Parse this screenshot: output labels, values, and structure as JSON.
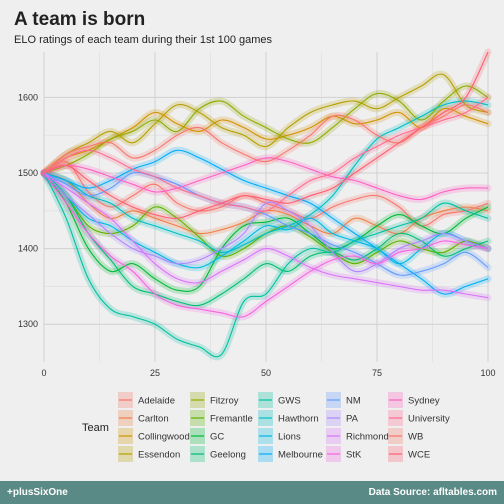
{
  "header": {
    "title": "A team is born",
    "subtitle": "ELO ratings of each team during their 1st 100 games"
  },
  "footer": {
    "left": "+plusSixOne",
    "right": "Data Source: afltables.com"
  },
  "legend": {
    "title": "Team"
  },
  "chart_data": {
    "type": "line",
    "title": "A team is born",
    "subtitle": "ELO ratings of each team during their 1st 100 games",
    "xlabel": "",
    "ylabel": "",
    "xlim": [
      0,
      100
    ],
    "ylim": [
      1250,
      1660
    ],
    "x_ticks": [
      0,
      25,
      50,
      75,
      100
    ],
    "y_ticks": [
      1300,
      1400,
      1500,
      1600
    ],
    "grid": true,
    "legend_position": "bottom",
    "x": [
      0,
      5,
      10,
      15,
      20,
      25,
      30,
      35,
      40,
      45,
      50,
      55,
      60,
      65,
      70,
      75,
      80,
      85,
      90,
      95,
      100
    ],
    "series": [
      {
        "name": "Adelaide",
        "color": "#f8766d",
        "values": [
          1500,
          1515,
          1475,
          1455,
          1470,
          1485,
          1460,
          1450,
          1455,
          1470,
          1460,
          1450,
          1440,
          1455,
          1465,
          1470,
          1455,
          1430,
          1445,
          1450,
          1460
        ]
      },
      {
        "name": "Carlton",
        "color": "#ef7f49",
        "values": [
          1500,
          1490,
          1460,
          1440,
          1450,
          1440,
          1430,
          1420,
          1425,
          1435,
          1450,
          1445,
          1430,
          1420,
          1440,
          1430,
          1420,
          1440,
          1450,
          1455,
          1450
        ]
      },
      {
        "name": "Collingwood",
        "color": "#d39200",
        "values": [
          1500,
          1520,
          1530,
          1545,
          1560,
          1580,
          1565,
          1555,
          1570,
          1560,
          1545,
          1550,
          1560,
          1575,
          1565,
          1570,
          1580,
          1560,
          1585,
          1575,
          1565
        ]
      },
      {
        "name": "Essendon",
        "color": "#b79f00",
        "values": [
          1500,
          1525,
          1540,
          1555,
          1540,
          1565,
          1590,
          1580,
          1560,
          1550,
          1535,
          1560,
          1580,
          1590,
          1595,
          1585,
          1600,
          1615,
          1630,
          1590,
          1580
        ]
      },
      {
        "name": "Fitzroy",
        "color": "#93aa00",
        "values": [
          1500,
          1510,
          1525,
          1545,
          1555,
          1570,
          1555,
          1585,
          1595,
          1575,
          1560,
          1545,
          1540,
          1560,
          1585,
          1605,
          1595,
          1570,
          1595,
          1615,
          1600
        ]
      },
      {
        "name": "Fremantle",
        "color": "#5eb300",
        "values": [
          1500,
          1470,
          1430,
          1420,
          1430,
          1455,
          1440,
          1415,
          1390,
          1400,
          1420,
          1430,
          1415,
          1395,
          1380,
          1395,
          1410,
          1400,
          1395,
          1410,
          1400
        ]
      },
      {
        "name": "GC",
        "color": "#00ba38",
        "values": [
          1500,
          1460,
          1400,
          1370,
          1380,
          1360,
          1345,
          1350,
          1400,
          1430,
          1435,
          1440,
          1420,
          1400,
          1410,
          1430,
          1445,
          1430,
          1420,
          1440,
          1455
        ]
      },
      {
        "name": "Geelong",
        "color": "#00bf74",
        "values": [
          1500,
          1470,
          1420,
          1385,
          1350,
          1340,
          1330,
          1325,
          1340,
          1360,
          1380,
          1370,
          1390,
          1395,
          1385,
          1400,
          1420,
          1410,
          1390,
          1400,
          1410
        ]
      },
      {
        "name": "GWS",
        "color": "#00c19f",
        "values": [
          1500,
          1440,
          1360,
          1320,
          1310,
          1300,
          1280,
          1270,
          1260,
          1330,
          1340,
          1380,
          1400,
          1395,
          1410,
          1420,
          1430,
          1440,
          1460,
          1450,
          1440
        ]
      },
      {
        "name": "Hawthorn",
        "color": "#00bfc4",
        "values": [
          1500,
          1490,
          1470,
          1460,
          1440,
          1430,
          1420,
          1410,
          1395,
          1405,
          1420,
          1430,
          1445,
          1470,
          1510,
          1545,
          1560,
          1575,
          1590,
          1595,
          1590
        ]
      },
      {
        "name": "Lions",
        "color": "#00b9e3",
        "values": [
          1500,
          1470,
          1440,
          1430,
          1410,
          1395,
          1380,
          1375,
          1390,
          1410,
          1430,
          1425,
          1440,
          1420,
          1410,
          1400,
          1380,
          1400,
          1420,
          1410,
          1400
        ]
      },
      {
        "name": "Melbourne",
        "color": "#00adfa",
        "values": [
          1500,
          1490,
          1480,
          1490,
          1505,
          1515,
          1530,
          1520,
          1505,
          1490,
          1480,
          1470,
          1460,
          1440,
          1420,
          1400,
          1380,
          1360,
          1340,
          1350,
          1360
        ]
      },
      {
        "name": "NM",
        "color": "#619cff",
        "values": [
          1500,
          1485,
          1470,
          1480,
          1500,
          1495,
          1485,
          1470,
          1460,
          1455,
          1445,
          1430,
          1420,
          1405,
          1395,
          1380,
          1365,
          1370,
          1380,
          1395,
          1375
        ]
      },
      {
        "name": "PA",
        "color": "#ae87ff",
        "values": [
          1500,
          1470,
          1445,
          1420,
          1400,
          1390,
          1380,
          1385,
          1400,
          1420,
          1460,
          1450,
          1430,
          1395,
          1370,
          1380,
          1400,
          1410,
          1420,
          1410,
          1400
        ]
      },
      {
        "name": "Richmond",
        "color": "#db72fb",
        "values": [
          1500,
          1480,
          1460,
          1440,
          1410,
          1380,
          1360,
          1355,
          1370,
          1385,
          1400,
          1390,
          1375,
          1365,
          1360,
          1355,
          1350,
          1345,
          1345,
          1340,
          1335
        ]
      },
      {
        "name": "StK",
        "color": "#f564e3",
        "values": [
          1500,
          1460,
          1420,
          1390,
          1370,
          1340,
          1325,
          1320,
          1315,
          1310,
          1330,
          1350,
          1370,
          1385,
          1390,
          1380,
          1395,
          1400,
          1410,
          1405,
          1400
        ]
      },
      {
        "name": "Sydney",
        "color": "#ff61c3",
        "values": [
          1500,
          1510,
          1505,
          1495,
          1485,
          1475,
          1480,
          1490,
          1500,
          1510,
          1520,
          1515,
          1505,
          1495,
          1490,
          1480,
          1470,
          1465,
          1475,
          1480,
          1480
        ]
      },
      {
        "name": "University",
        "color": "#ff6c91",
        "values": [
          1500,
          1520,
          1530,
          1520,
          1505,
          1495,
          1480,
          1470,
          1460,
          1455,
          1450,
          1470,
          1490,
          1500,
          1520,
          1535,
          1550,
          1560,
          1570,
          1580,
          1600
        ]
      },
      {
        "name": "WB",
        "color": "#f8766d",
        "values": [
          1500,
          1525,
          1535,
          1540,
          1520,
          1530,
          1550,
          1560,
          1540,
          1525,
          1515,
          1530,
          1550,
          1575,
          1570,
          1550,
          1540,
          1560,
          1575,
          1590,
          1580
        ]
      },
      {
        "name": "WCE",
        "color": "#ff5f6f",
        "values": [
          1500,
          1510,
          1490,
          1470,
          1455,
          1445,
          1440,
          1450,
          1460,
          1470,
          1465,
          1460,
          1470,
          1480,
          1500,
          1520,
          1540,
          1560,
          1580,
          1600,
          1660
        ]
      }
    ]
  }
}
